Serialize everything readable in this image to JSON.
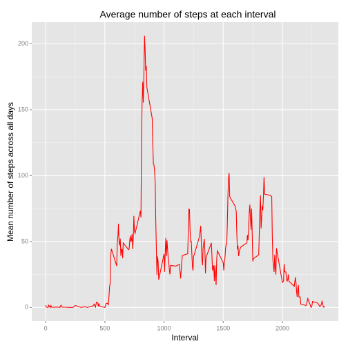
{
  "chart_data": {
    "type": "line",
    "title": "Average number of steps at each interval",
    "xlabel": "Interval",
    "ylabel": "Mean number of steps across all days",
    "color": "#ff0000",
    "grid": true,
    "xlim": [
      -117.75,
      2472.75
    ],
    "ylim": [
      -10.3,
      216.5
    ],
    "xticks": [
      0,
      500,
      1000,
      1500,
      2000
    ],
    "yticks": [
      0,
      50,
      100,
      150,
      200
    ],
    "xminor": [
      250,
      750,
      1250,
      1750,
      2250
    ],
    "yminor": [
      25,
      75,
      125,
      175
    ],
    "x": [
      0,
      5,
      10,
      15,
      20,
      25,
      30,
      35,
      40,
      45,
      50,
      55,
      100,
      110,
      120,
      125,
      130,
      140,
      150,
      200,
      230,
      250,
      300,
      330,
      340,
      350,
      400,
      410,
      420,
      430,
      440,
      445,
      450,
      455,
      500,
      510,
      520,
      530,
      540,
      545,
      550,
      555,
      600,
      605,
      610,
      615,
      620,
      625,
      630,
      635,
      640,
      645,
      650,
      655,
      700,
      705,
      710,
      715,
      720,
      725,
      730,
      735,
      740,
      745,
      750,
      755,
      800,
      805,
      810,
      815,
      820,
      825,
      830,
      835,
      840,
      845,
      850,
      855,
      900,
      905,
      910,
      915,
      920,
      925,
      930,
      935,
      940,
      945,
      950,
      955,
      1000,
      1005,
      1010,
      1015,
      1020,
      1025,
      1030,
      1035,
      1040,
      1045,
      1050,
      1055,
      1100,
      1130,
      1140,
      1150,
      1155,
      1200,
      1205,
      1210,
      1215,
      1220,
      1225,
      1230,
      1240,
      1245,
      1250,
      1255,
      1300,
      1310,
      1320,
      1325,
      1330,
      1340,
      1345,
      1350,
      1355,
      1400,
      1410,
      1420,
      1425,
      1430,
      1440,
      1445,
      1450,
      1500,
      1505,
      1510,
      1515,
      1520,
      1525,
      1530,
      1535,
      1540,
      1545,
      1550,
      1555,
      1600,
      1610,
      1615,
      1620,
      1625,
      1630,
      1640,
      1645,
      1650,
      1700,
      1705,
      1710,
      1715,
      1720,
      1725,
      1730,
      1735,
      1740,
      1745,
      1750,
      1755,
      1800,
      1810,
      1815,
      1820,
      1825,
      1830,
      1835,
      1840,
      1845,
      1850,
      1900,
      1910,
      1915,
      1920,
      1930,
      1935,
      1940,
      1945,
      1950,
      2000,
      2010,
      2015,
      2020,
      2030,
      2035,
      2040,
      2045,
      2050,
      2055,
      2100,
      2110,
      2115,
      2120,
      2125,
      2130,
      2135,
      2140,
      2145,
      2150,
      2155,
      2200,
      2210,
      2215,
      2220,
      2230,
      2235,
      2240,
      2245,
      2250,
      2255,
      2300,
      2315,
      2320,
      2325,
      2330,
      2335,
      2340,
      2345,
      2350,
      2355
    ],
    "values": [
      1.72,
      0.34,
      0.13,
      0.15,
      0.08,
      2.09,
      0.53,
      0.87,
      0,
      1.47,
      0.3,
      0.13,
      0.32,
      0.2,
      0,
      1.1,
      1.8,
      0.2,
      0.3,
      0,
      0,
      1.5,
      0,
      0.6,
      0.5,
      0,
      1.2,
      2.6,
      0.3,
      4.1,
      3.5,
      0.8,
      3.1,
      1.1,
      0,
      3.0,
      3.3,
      2.1,
      16.0,
      18.3,
      39.5,
      44.5,
      31.5,
      49.3,
      53.8,
      63.5,
      50,
      47.1,
      52.2,
      39.3,
      44,
      44.2,
      37.4,
      49.0,
      43.8,
      44.4,
      50.5,
      54.5,
      49.9,
      51,
      55.7,
      44.3,
      52.3,
      69.5,
      57.8,
      56.2,
      73.4,
      68.2,
      129.4,
      157.5,
      171.2,
      155.4,
      177.3,
      206.2,
      195.9,
      179.6,
      183.4,
      167.0,
      143.5,
      124.0,
      109.1,
      108.1,
      103.7,
      95.97,
      66.2,
      45.2,
      24.8,
      38.8,
      35.0,
      21.1,
      40.6,
      27,
      42.4,
      52.7,
      38.9,
      50.8,
      44.3,
      37.4,
      34.7,
      28.3,
      25.1,
      31.9,
      31.4,
      32.7,
      22,
      35,
      39.5,
      40.7,
      58.0,
      74.7,
      74.3,
      58.6,
      50,
      50.2,
      31,
      28,
      39,
      40,
      54,
      62,
      37,
      32,
      45,
      52,
      44,
      26,
      38,
      49,
      28,
      32,
      20,
      32,
      17,
      36,
      43,
      34,
      28,
      35,
      38,
      45,
      48,
      48,
      65,
      85,
      98,
      102,
      84,
      77,
      73,
      56,
      44,
      47,
      39,
      44,
      45,
      46,
      49,
      55,
      51,
      60,
      72,
      78,
      68,
      59,
      75,
      56,
      35,
      37,
      40,
      74,
      85,
      60,
      68,
      77,
      74,
      85,
      99,
      86,
      85,
      84,
      53,
      36,
      27,
      40,
      30,
      25,
      45,
      19,
      20,
      33,
      27,
      27,
      21,
      20,
      21,
      25,
      20,
      16,
      23,
      19,
      12,
      8,
      14,
      17,
      8,
      8,
      8,
      2.6,
      1.5,
      4.6,
      6.8,
      5.6,
      3,
      2.2,
      0.3,
      0.1,
      1.6,
      4.6,
      3.3,
      0.8,
      1,
      1.6,
      2.6,
      4.7,
      3.3,
      0.6,
      0.2,
      1.1
    ]
  }
}
